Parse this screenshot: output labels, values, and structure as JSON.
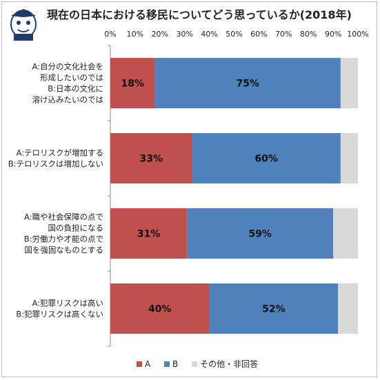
{
  "title": "現在の日本における移民についてどう思っているか(2018年)",
  "colors": {
    "A": "#c0504d",
    "B": "#4f81bd",
    "other": "#d9d9d9"
  },
  "chart_data": {
    "type": "bar",
    "orientation": "horizontal",
    "stacked": true,
    "xlim": [
      0,
      100
    ],
    "tick_labels": [
      "0%",
      "10%",
      "20%",
      "30%",
      "40%",
      "50%",
      "60%",
      "70%",
      "80%",
      "90%",
      "100%"
    ],
    "categories": [
      [
        "A:自分の文化社会を",
        "形成したいのでは",
        "B:日本の文化に",
        "溶け込みたいのでは"
      ],
      [
        "A:テロリスクが増加する",
        "B:テロリスクは増加しない"
      ],
      [
        "A:職や社会保障の点で",
        "国の負担になる",
        "B:労働力や才能の点で",
        "国を強固なものとする"
      ],
      [
        "A:犯罪リスクは高い",
        "B:犯罪リスクは高くない"
      ]
    ],
    "series": [
      {
        "name": "A",
        "values": [
          18,
          33,
          31,
          40
        ],
        "labels": [
          "18%",
          "33%",
          "31%",
          "40%"
        ]
      },
      {
        "name": "B",
        "values": [
          75,
          60,
          59,
          52
        ],
        "labels": [
          "75%",
          "60%",
          "59%",
          "52%"
        ]
      },
      {
        "name": "その他・非回答",
        "values": [
          7,
          7,
          10,
          8
        ]
      }
    ],
    "legend_position": "bottom",
    "grid": false
  }
}
